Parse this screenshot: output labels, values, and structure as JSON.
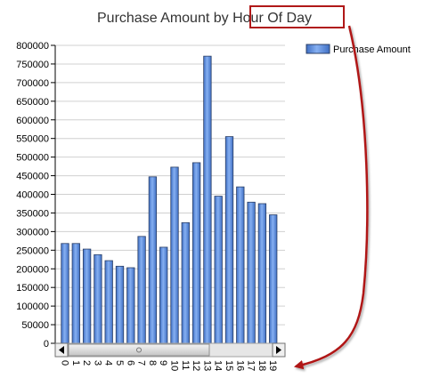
{
  "chart_data": {
    "type": "bar",
    "title": "Purchase Amount by Hour Of Day",
    "title_prefix": "Purchase Amount by ",
    "title_highlight": "Hour Of Day",
    "categories": [
      "0",
      "1",
      "2",
      "3",
      "4",
      "5",
      "6",
      "7",
      "8",
      "9",
      "10",
      "11",
      "12",
      "13",
      "14",
      "15",
      "16",
      "17",
      "18",
      "19"
    ],
    "series": [
      {
        "name": "Purchase Amount",
        "values": [
          268000,
          268000,
          253000,
          238000,
          222000,
          207000,
          203000,
          287000,
          447000,
          258000,
          473000,
          324000,
          485000,
          771000,
          395000,
          555000,
          420000,
          379000,
          375000,
          345000
        ]
      }
    ],
    "y_ticks": [
      "800000",
      "750000",
      "700000",
      "650000",
      "600000",
      "550000",
      "500000",
      "450000",
      "400000",
      "350000",
      "300000",
      "250000",
      "200000",
      "150000",
      "100000",
      "50000",
      "0"
    ],
    "ylim": [
      0,
      800000
    ],
    "y_step": 50000,
    "grid": true,
    "legend_position": "top-right",
    "colors": {
      "bar_fill": "#5b8fe0",
      "bar_stroke": "#2b3f66",
      "highlight": "#b01818",
      "grid": "#d0d0d0",
      "scrollbar_track": "#e6e6e6",
      "scrollbar_thumb": "#c8c8c8"
    }
  }
}
